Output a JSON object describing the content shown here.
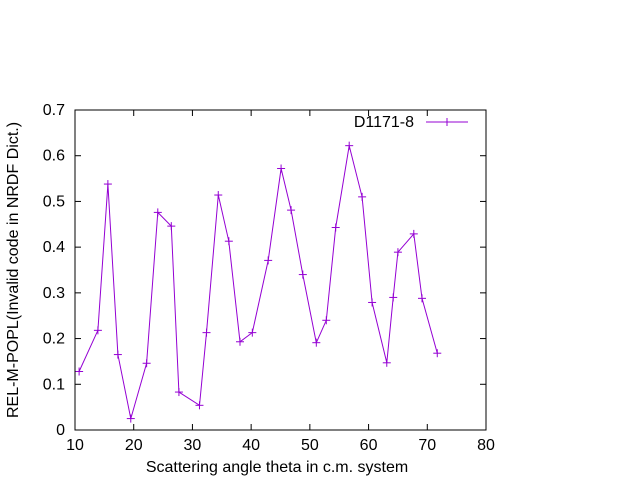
{
  "chart_data": {
    "type": "line",
    "title": "",
    "xlabel": "Scattering angle theta in c.m. system",
    "ylabel": "REL-M-POPL(Invalid code in NRDF Dict.)",
    "xlim": [
      10,
      80
    ],
    "ylim": [
      0,
      0.7
    ],
    "x_ticks": [
      "10",
      "20",
      "30",
      "40",
      "50",
      "60",
      "70",
      "80"
    ],
    "y_ticks": [
      "0",
      "0.1",
      "0.2",
      "0.3",
      "0.4",
      "0.5",
      "0.6",
      "0.7"
    ],
    "grid": false,
    "legend_position": "top-right",
    "markers": "plus",
    "series": [
      {
        "name": "D1171-8",
        "color": "#9400d3",
        "x": [
          10.7,
          13.9,
          15.6,
          17.3,
          19.5,
          22.2,
          24.1,
          26.4,
          27.7,
          31.2,
          32.4,
          34.4,
          36.2,
          38.1,
          40.2,
          42.9,
          45.1,
          46.8,
          48.8,
          51.1,
          52.8,
          54.4,
          56.7,
          58.9,
          60.6,
          63.1,
          64.2,
          65.0,
          67.7,
          69.1,
          71.7
        ],
        "y": [
          0.128,
          0.218,
          0.538,
          0.165,
          0.025,
          0.146,
          0.476,
          0.446,
          0.083,
          0.054,
          0.213,
          0.514,
          0.413,
          0.193,
          0.213,
          0.371,
          0.572,
          0.481,
          0.34,
          0.191,
          0.24,
          0.443,
          0.622,
          0.51,
          0.279,
          0.147,
          0.29,
          0.389,
          0.429,
          0.288,
          0.168
        ]
      }
    ]
  }
}
